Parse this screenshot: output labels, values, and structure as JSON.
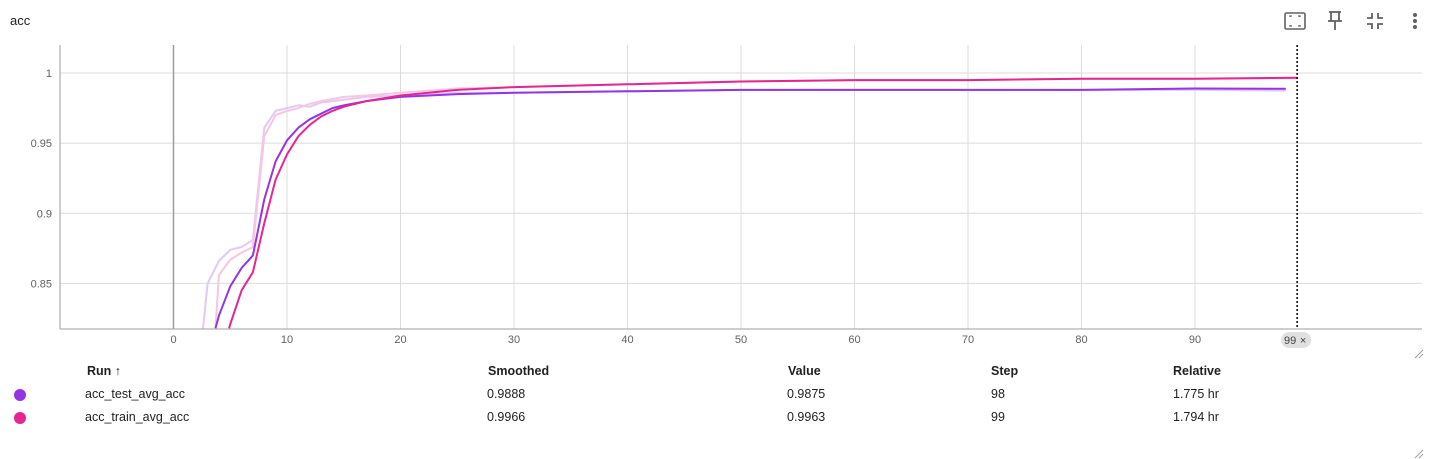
{
  "card": {
    "title": "acc"
  },
  "toolbar": {
    "icons": [
      "fit-domain-icon",
      "pin-icon",
      "collapse-icon",
      "more-vert-icon"
    ]
  },
  "chart_data": {
    "type": "line",
    "title": "acc",
    "xlabel": "",
    "ylabel": "",
    "xlim": [
      -10,
      110
    ],
    "ylim": [
      0.8175,
      1.02
    ],
    "x_ticks": [
      0,
      10,
      20,
      30,
      40,
      50,
      60,
      70,
      80,
      90
    ],
    "x_tick_labels": [
      "0",
      "10",
      "20",
      "30",
      "40",
      "50",
      "60",
      "70",
      "80",
      "90"
    ],
    "y_ticks": [
      0.85,
      0.9,
      0.95,
      1
    ],
    "y_tick_labels": [
      "0.85",
      "0.9",
      "0.95",
      "1"
    ],
    "grid": true,
    "hover_step": 99,
    "hover_label": "99",
    "series": [
      {
        "name": "acc_test_avg_acc",
        "color": "#9334e6",
        "raw_color": "#e3c8f5",
        "smoothed": [
          [
            3.7,
            0.818
          ],
          [
            4,
            0.827
          ],
          [
            5,
            0.848
          ],
          [
            6,
            0.861
          ],
          [
            7,
            0.87
          ],
          [
            8,
            0.91
          ],
          [
            9,
            0.937
          ],
          [
            10,
            0.952
          ],
          [
            11,
            0.961
          ],
          [
            12,
            0.967
          ],
          [
            13,
            0.971
          ],
          [
            14,
            0.975
          ],
          [
            15,
            0.977
          ],
          [
            17,
            0.98
          ],
          [
            20,
            0.983
          ],
          [
            25,
            0.985
          ],
          [
            30,
            0.986
          ],
          [
            40,
            0.987
          ],
          [
            50,
            0.988
          ],
          [
            60,
            0.988
          ],
          [
            70,
            0.988
          ],
          [
            80,
            0.988
          ],
          [
            90,
            0.989
          ],
          [
            98,
            0.9888
          ]
        ],
        "raw": [
          [
            2.6,
            0.818
          ],
          [
            3,
            0.85
          ],
          [
            4,
            0.866
          ],
          [
            5,
            0.874
          ],
          [
            6,
            0.876
          ],
          [
            7,
            0.881
          ],
          [
            8,
            0.961
          ],
          [
            9,
            0.973
          ],
          [
            10,
            0.975
          ],
          [
            11,
            0.977
          ],
          [
            12,
            0.976
          ],
          [
            13,
            0.979
          ],
          [
            15,
            0.981
          ],
          [
            17,
            0.983
          ],
          [
            20,
            0.984
          ],
          [
            25,
            0.986
          ],
          [
            30,
            0.986
          ],
          [
            40,
            0.987
          ],
          [
            50,
            0.988
          ],
          [
            60,
            0.988
          ],
          [
            70,
            0.988
          ],
          [
            80,
            0.988
          ],
          [
            90,
            0.988
          ],
          [
            98,
            0.9875
          ]
        ]
      },
      {
        "name": "acc_train_avg_acc",
        "color": "#e52592",
        "raw_color": "#f7c6e0",
        "smoothed": [
          [
            4.9,
            0.818
          ],
          [
            5,
            0.821
          ],
          [
            6,
            0.845
          ],
          [
            7,
            0.858
          ],
          [
            8,
            0.893
          ],
          [
            9,
            0.924
          ],
          [
            10,
            0.942
          ],
          [
            11,
            0.955
          ],
          [
            12,
            0.963
          ],
          [
            13,
            0.969
          ],
          [
            14,
            0.973
          ],
          [
            15,
            0.976
          ],
          [
            17,
            0.98
          ],
          [
            20,
            0.984
          ],
          [
            25,
            0.988
          ],
          [
            30,
            0.99
          ],
          [
            40,
            0.992
          ],
          [
            50,
            0.994
          ],
          [
            60,
            0.995
          ],
          [
            70,
            0.995
          ],
          [
            80,
            0.996
          ],
          [
            90,
            0.996
          ],
          [
            99,
            0.9966
          ]
        ],
        "raw": [
          [
            3.7,
            0.818
          ],
          [
            4,
            0.856
          ],
          [
            5,
            0.867
          ],
          [
            6,
            0.872
          ],
          [
            7,
            0.876
          ],
          [
            8,
            0.955
          ],
          [
            9,
            0.97
          ],
          [
            10,
            0.973
          ],
          [
            11,
            0.975
          ],
          [
            12,
            0.978
          ],
          [
            13,
            0.98
          ],
          [
            15,
            0.983
          ],
          [
            17,
            0.984
          ],
          [
            20,
            0.986
          ],
          [
            25,
            0.989
          ],
          [
            30,
            0.99
          ],
          [
            40,
            0.992
          ],
          [
            50,
            0.994
          ],
          [
            60,
            0.995
          ],
          [
            70,
            0.995
          ],
          [
            80,
            0.996
          ],
          [
            90,
            0.996
          ],
          [
            99,
            0.9963
          ]
        ]
      }
    ]
  },
  "table": {
    "headers": {
      "run": "Run ↑",
      "smoothed": "Smoothed",
      "value": "Value",
      "step": "Step",
      "relative": "Relative"
    },
    "rows": [
      {
        "run": "acc_test_avg_acc",
        "color": "#9334e6",
        "smoothed": "0.9888",
        "value": "0.9875",
        "step": "98",
        "relative": "1.775 hr"
      },
      {
        "run": "acc_train_avg_acc",
        "color": "#e52592",
        "smoothed": "0.9966",
        "value": "0.9963",
        "step": "99",
        "relative": "1.794 hr"
      }
    ]
  }
}
